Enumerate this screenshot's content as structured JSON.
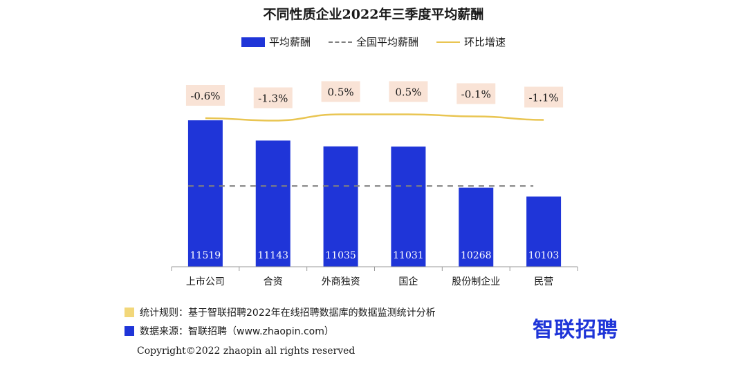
{
  "chart_data": {
    "type": "bar",
    "title": "不同性质企业2022年三季度平均薪酬",
    "categories": [
      "上市公司",
      "合资",
      "外商独资",
      "国企",
      "股份制企业",
      "民营"
    ],
    "series": [
      {
        "name": "平均薪酬",
        "type": "bar",
        "values": [
          11519,
          11143,
          11035,
          11031,
          10268,
          10103
        ],
        "color": "#1f35d8"
      },
      {
        "name": "环比增速",
        "type": "line",
        "values": [
          -0.6,
          -1.3,
          0.5,
          0.5,
          -0.1,
          -1.1
        ],
        "labels": [
          "-0.6%",
          "-1.3%",
          "0.5%",
          "0.5%",
          "-0.1%",
          "-1.1%"
        ],
        "color": "#e9c552"
      }
    ],
    "reference_line": {
      "name": "全国平均薪酬",
      "value": 10300,
      "style": "dashed",
      "color": "#808080"
    },
    "ylim": [
      8800,
      11700
    ],
    "legend_position": "top-center",
    "grid": false
  },
  "footer": {
    "rule": "统计规则：基于智联招聘2022年在线招聘数据库的数据监测统计分析",
    "source": "数据来源：智联招聘（www.zhaopin.com）",
    "copyright": "Copyright©2022 zhaopin all rights reserved",
    "rule_color": "#f2d77a",
    "source_color": "#1f35d8"
  },
  "logo": {
    "text": "智联招聘",
    "color": "#1f35d8"
  }
}
